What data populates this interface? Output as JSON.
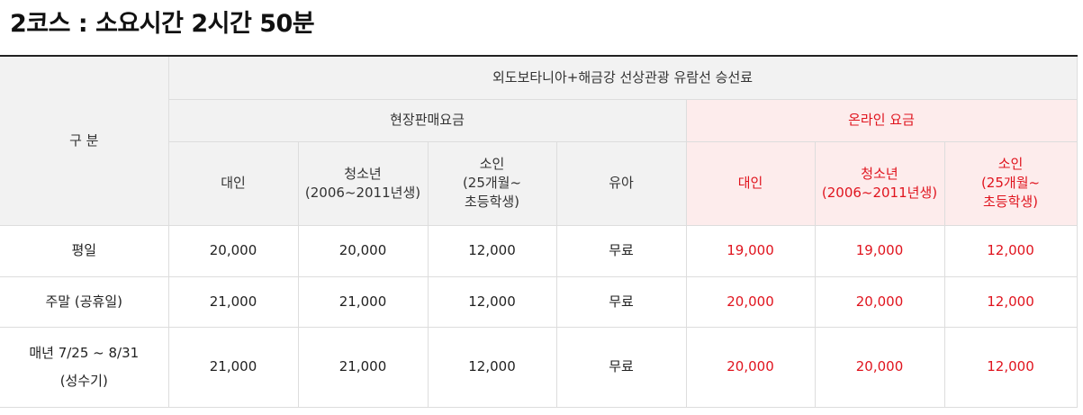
{
  "title": "2코스 : 소요시간 2시간 50분",
  "table": {
    "category_label": "구 분",
    "group_title": "외도보타니아+해금강 선상관광 유람선 승선료",
    "onsite_title": "현장판매요금",
    "online_title": "온라인 요금",
    "columns": [
      {
        "lines": [
          "대인"
        ]
      },
      {
        "lines": [
          "청소년",
          "(2006~2011년생)"
        ]
      },
      {
        "lines": [
          "소인",
          "(25개월~",
          "초등학생)"
        ]
      },
      {
        "lines": [
          "유아"
        ]
      }
    ],
    "online_columns": [
      {
        "lines": [
          "대인"
        ]
      },
      {
        "lines": [
          "청소년",
          "(2006~2011년생)"
        ]
      },
      {
        "lines": [
          "소인",
          "(25개월~",
          "초등학생)"
        ]
      }
    ],
    "rows": [
      {
        "label": [
          "평일"
        ],
        "onsite": [
          "20,000",
          "20,000",
          "12,000",
          "무료"
        ],
        "online": [
          "19,000",
          "19,000",
          "12,000"
        ]
      },
      {
        "label": [
          "주말 (공휴일)"
        ],
        "onsite": [
          "21,000",
          "21,000",
          "12,000",
          "무료"
        ],
        "online": [
          "20,000",
          "20,000",
          "12,000"
        ]
      },
      {
        "label": [
          "매년 7/25 ~ 8/31",
          "(성수기)"
        ],
        "onsite": [
          "21,000",
          "21,000",
          "12,000",
          "무료"
        ],
        "online": [
          "20,000",
          "20,000",
          "12,000"
        ]
      }
    ]
  },
  "colors": {
    "online_text": "#e0141e",
    "online_header_bg": "#fdecec",
    "header_bg": "#f2f2f2"
  }
}
